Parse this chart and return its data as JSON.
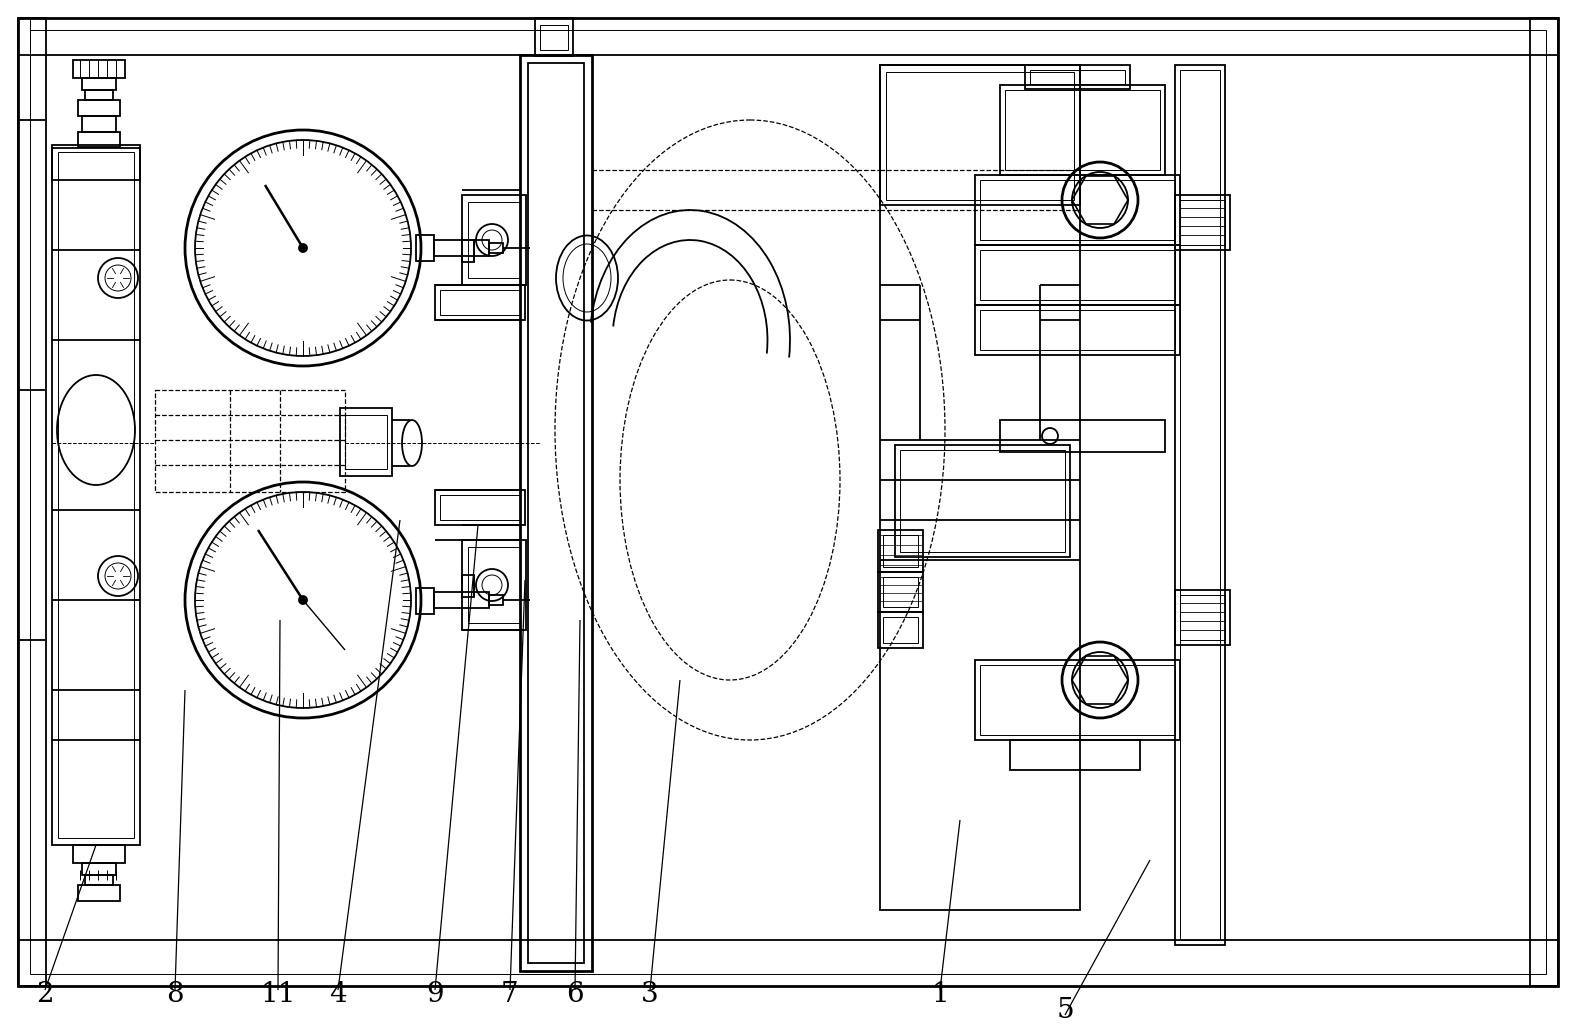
{
  "fig_width": 15.76,
  "fig_height": 10.29,
  "dpi": 100,
  "bg_color": "#ffffff",
  "line_color": "#000000",
  "lw": 1.3,
  "lw_thin": 0.7,
  "lw_thick": 2.0,
  "lw_dash": 0.9,
  "labels": [
    "2",
    "8",
    "11",
    "4",
    "9",
    "7",
    "6",
    "3",
    "1",
    "5"
  ],
  "label_x_fig": [
    45,
    175,
    278,
    338,
    435,
    510,
    575,
    650,
    940,
    1065
  ],
  "label_y_fig": [
    995,
    995,
    995,
    995,
    995,
    995,
    995,
    995,
    995,
    1010
  ],
  "label_fontsize": 20
}
